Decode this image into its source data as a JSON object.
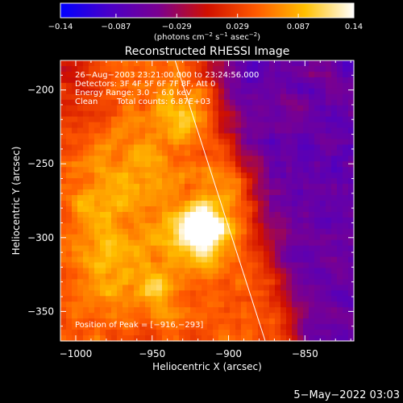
{
  "chart_data": {
    "type": "heatmap",
    "title": "Reconstructed RHESSI Image",
    "xlabel": "Heliocentric X (arcsec)",
    "ylabel": "Heliocentric Y (arcsec)",
    "x_ticks": [
      -1000,
      -950,
      -900,
      -850
    ],
    "y_ticks": [
      -200,
      -250,
      -300,
      -350
    ],
    "x_tick_labels": [
      "−1000",
      "−950",
      "−900",
      "−850"
    ],
    "y_tick_labels": [
      "−200",
      "−250",
      "−300",
      "−350"
    ],
    "xlim": [
      -1010,
      -818
    ],
    "ylim": [
      -370,
      -180
    ],
    "colorbar": {
      "ticks": [
        -0.14,
        -0.087,
        -0.029,
        0.029,
        0.087,
        0.14
      ],
      "tick_labels": [
        "−0.14",
        "−0.087",
        "−0.029",
        "0.029",
        "0.087",
        "0.14"
      ],
      "range": [
        -0.14,
        0.14
      ],
      "units_label": "(photons cm",
      "units_sup1": "−2",
      "units_mid1": " s",
      "units_sup2": "−1",
      "units_mid2": " asec",
      "units_sup3": "−2",
      "units_end": ")",
      "colors": [
        "#0000ff",
        "#4a00c8",
        "#7a0090",
        "#d01000",
        "#ff5a00",
        "#ffc000",
        "#ffffff"
      ]
    },
    "annotations": [
      "26−Aug−2003 23:21:00.000 to 23:24:56.000",
      "Detectors: 3F 4F 5F 6F 7F 8F, Att 0",
      "Energy Range: 3.0 − 6.0 keV",
      "Clean",
      "Total counts: 6.87E+03"
    ],
    "peak_label": "Position of Peak = [−916,−293]",
    "peak": {
      "x": -916,
      "y": -293
    },
    "limb_line": [
      {
        "x": -935,
        "y": -180
      },
      {
        "x": -876,
        "y": -370
      }
    ],
    "sources": [
      {
        "x": -916,
        "y": -293,
        "amp": 0.14,
        "sigma": 9
      },
      {
        "x": -922,
        "y": -303,
        "amp": 0.05,
        "sigma": 14
      },
      {
        "x": -930,
        "y": -215,
        "amp": 0.05,
        "sigma": 12
      },
      {
        "x": -978,
        "y": -330,
        "amp": 0.04,
        "sigma": 14
      },
      {
        "x": -945,
        "y": -333,
        "amp": 0.055,
        "sigma": 9
      },
      {
        "x": -955,
        "y": -250,
        "amp": 0.035,
        "sigma": 18
      },
      {
        "x": -990,
        "y": -282,
        "amp": 0.03,
        "sigma": 14
      },
      {
        "x": -900,
        "y": -270,
        "amp": 0.03,
        "sigma": 16
      },
      {
        "x": -965,
        "y": -300,
        "amp": 0.025,
        "sigma": 20
      }
    ]
  },
  "footer": {
    "date_label": "5−May−2022 03:03"
  }
}
